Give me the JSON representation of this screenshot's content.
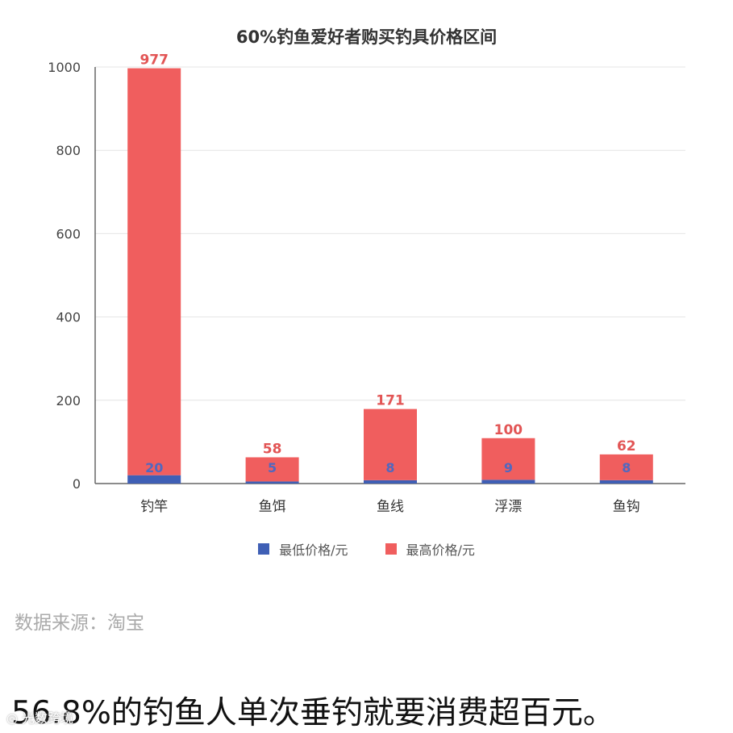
{
  "chart_data": {
    "type": "bar",
    "stacked": true,
    "title": "60%钓鱼爱好者购买钓具价格区间",
    "categories": [
      "钓竿",
      "鱼饵",
      "鱼线",
      "浮漂",
      "鱼钩"
    ],
    "series": [
      {
        "name": "最低价格/元",
        "color": "#3f5fb5",
        "values": [
          20,
          5,
          8,
          9,
          8
        ]
      },
      {
        "name": "最高价格/元",
        "color": "#f05e5e",
        "values": [
          977,
          58,
          171,
          100,
          62
        ]
      }
    ],
    "yticks": [
      0,
      200,
      400,
      600,
      800,
      1000
    ],
    "ylim": [
      0,
      1000
    ],
    "grid": true,
    "legend_position": "bottom"
  },
  "source_text": "数据来源：淘宝",
  "caption_text": "56.8%的钓鱼人单次垂钓就要消费超百元。",
  "watermark_text": "◎ 光数跨境"
}
